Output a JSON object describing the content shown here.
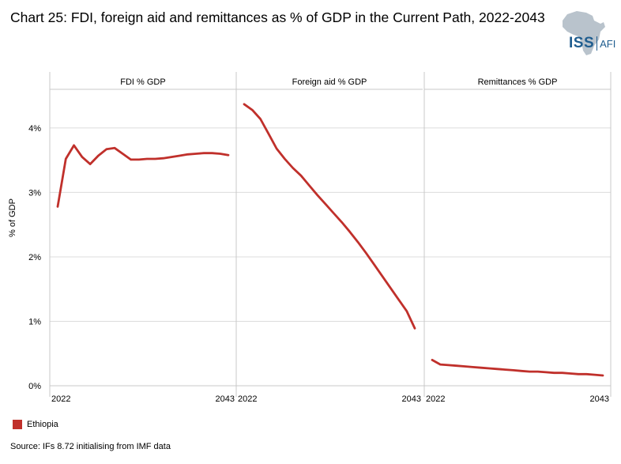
{
  "title": "Chart 25: FDI, foreign aid and remittances as % of GDP in the Current Path, 2022-2043",
  "logo": {
    "text_main": "ISS",
    "text_secondary": "AFI",
    "icon": "africa-map-icon"
  },
  "source": "Source: IFs 8.72 initialising from IMF data",
  "legend": [
    {
      "label": "Ethiopia",
      "color": "#c0302b"
    }
  ],
  "chart_data": {
    "type": "line",
    "ylabel": "% of GDP",
    "ylim": [
      0,
      4.6
    ],
    "yticks": [
      0,
      1,
      2,
      3,
      4
    ],
    "ytick_labels": [
      "0%",
      "1%",
      "2%",
      "3%",
      "4%"
    ],
    "grid": true,
    "legend_position": "bottom-left",
    "panels": [
      {
        "title": "FDI % GDP",
        "xtick_labels": [
          "2022",
          "2043"
        ],
        "series": [
          {
            "name": "Ethiopia",
            "x": [
              2022,
              2023,
              2024,
              2025,
              2026,
              2027,
              2028,
              2029,
              2030,
              2031,
              2032,
              2033,
              2034,
              2035,
              2036,
              2037,
              2038,
              2039,
              2040,
              2041,
              2042,
              2043
            ],
            "values": [
              2.78,
              3.52,
              3.73,
              3.55,
              3.44,
              3.57,
              3.67,
              3.69,
              3.6,
              3.51,
              3.51,
              3.52,
              3.52,
              3.53,
              3.55,
              3.57,
              3.59,
              3.6,
              3.61,
              3.61,
              3.6,
              3.58
            ]
          }
        ]
      },
      {
        "title": "Foreign aid % GDP",
        "xtick_labels": [
          "2022",
          "2043"
        ],
        "series": [
          {
            "name": "Ethiopia",
            "x": [
              2022,
              2023,
              2024,
              2025,
              2026,
              2027,
              2028,
              2029,
              2030,
              2031,
              2032,
              2033,
              2034,
              2035,
              2036,
              2037,
              2038,
              2039,
              2040,
              2041,
              2042,
              2043
            ],
            "values": [
              4.37,
              4.28,
              4.14,
              3.91,
              3.68,
              3.52,
              3.38,
              3.26,
              3.11,
              2.96,
              2.82,
              2.68,
              2.54,
              2.39,
              2.23,
              2.06,
              1.88,
              1.7,
              1.52,
              1.34,
              1.16,
              0.89
            ]
          }
        ]
      },
      {
        "title": "Remittances % GDP",
        "xtick_labels": [
          "2022",
          "2043"
        ],
        "series": [
          {
            "name": "Ethiopia",
            "x": [
              2022,
              2023,
              2024,
              2025,
              2026,
              2027,
              2028,
              2029,
              2030,
              2031,
              2032,
              2033,
              2034,
              2035,
              2036,
              2037,
              2038,
              2039,
              2040,
              2041,
              2042,
              2043
            ],
            "values": [
              0.4,
              0.33,
              0.32,
              0.31,
              0.3,
              0.29,
              0.28,
              0.27,
              0.26,
              0.25,
              0.24,
              0.23,
              0.22,
              0.22,
              0.21,
              0.2,
              0.2,
              0.19,
              0.18,
              0.18,
              0.17,
              0.16
            ]
          }
        ]
      }
    ]
  }
}
